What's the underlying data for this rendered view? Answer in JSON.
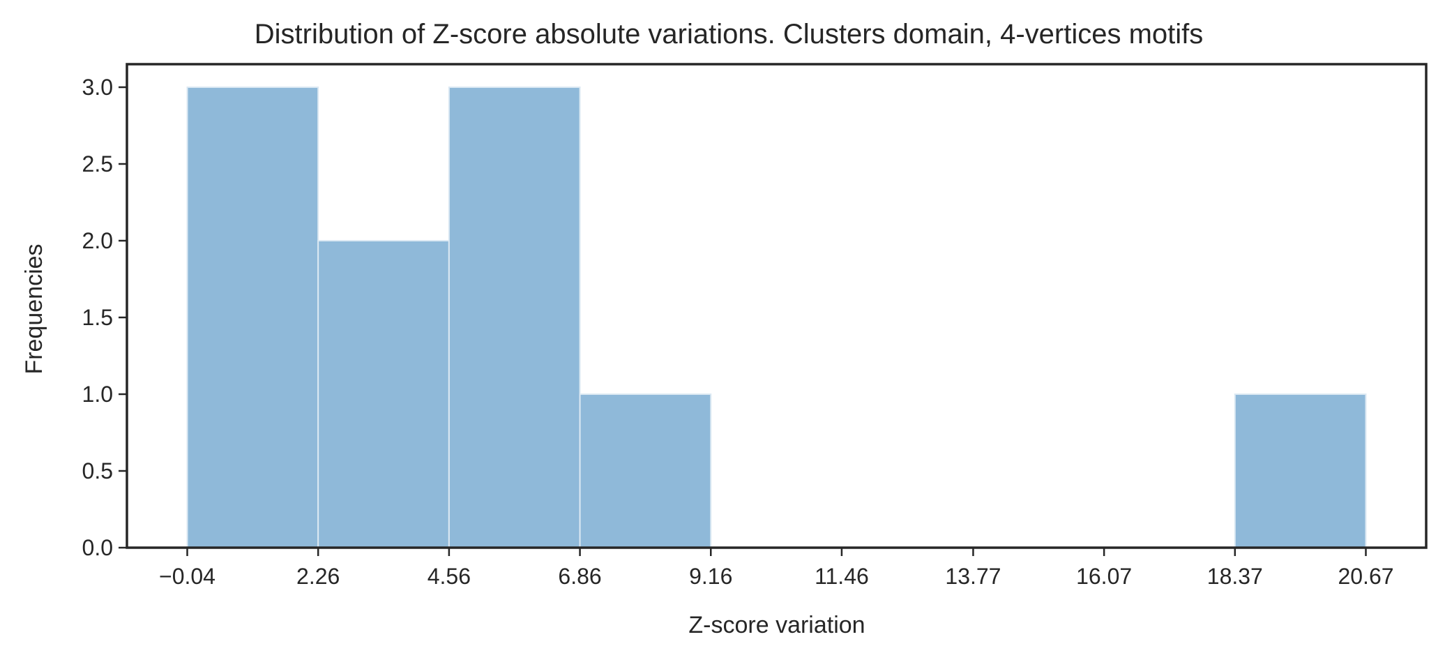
{
  "chart_data": {
    "type": "bar",
    "title": "Distribution of Z-score absolute variations. Clusters domain, 4-vertices motifs",
    "xlabel": "Z-score variation",
    "ylabel": "Frequencies",
    "bins": [
      {
        "start": -0.04,
        "end": 2.26,
        "value": 3
      },
      {
        "start": 2.26,
        "end": 4.56,
        "value": 2
      },
      {
        "start": 4.56,
        "end": 6.86,
        "value": 3
      },
      {
        "start": 6.86,
        "end": 9.16,
        "value": 1
      },
      {
        "start": 9.16,
        "end": 11.46,
        "value": 0
      },
      {
        "start": 11.46,
        "end": 13.77,
        "value": 0
      },
      {
        "start": 13.77,
        "end": 16.07,
        "value": 0
      },
      {
        "start": 16.07,
        "end": 18.37,
        "value": 0
      },
      {
        "start": 18.37,
        "end": 20.67,
        "value": 1
      }
    ],
    "xticks": [
      -0.04,
      2.26,
      4.56,
      6.86,
      9.16,
      11.46,
      13.77,
      16.07,
      18.37,
      20.67
    ],
    "xtick_labels": [
      "−0.04",
      "2.26",
      "4.56",
      "6.86",
      "9.16",
      "11.46",
      "13.77",
      "16.07",
      "18.37",
      "20.67"
    ],
    "yticks": [
      0.0,
      0.5,
      1.0,
      1.5,
      2.0,
      2.5,
      3.0
    ],
    "ytick_labels": [
      "0.0",
      "0.5",
      "1.0",
      "1.5",
      "2.0",
      "2.5",
      "3.0"
    ],
    "xlim": [
      -1.1,
      21.73
    ],
    "ylim": [
      0,
      3.15
    ],
    "grid": false,
    "bar_color": "#8fb9d9",
    "bar_edge_color": "#dce9f3",
    "axis_color": "#262626"
  }
}
